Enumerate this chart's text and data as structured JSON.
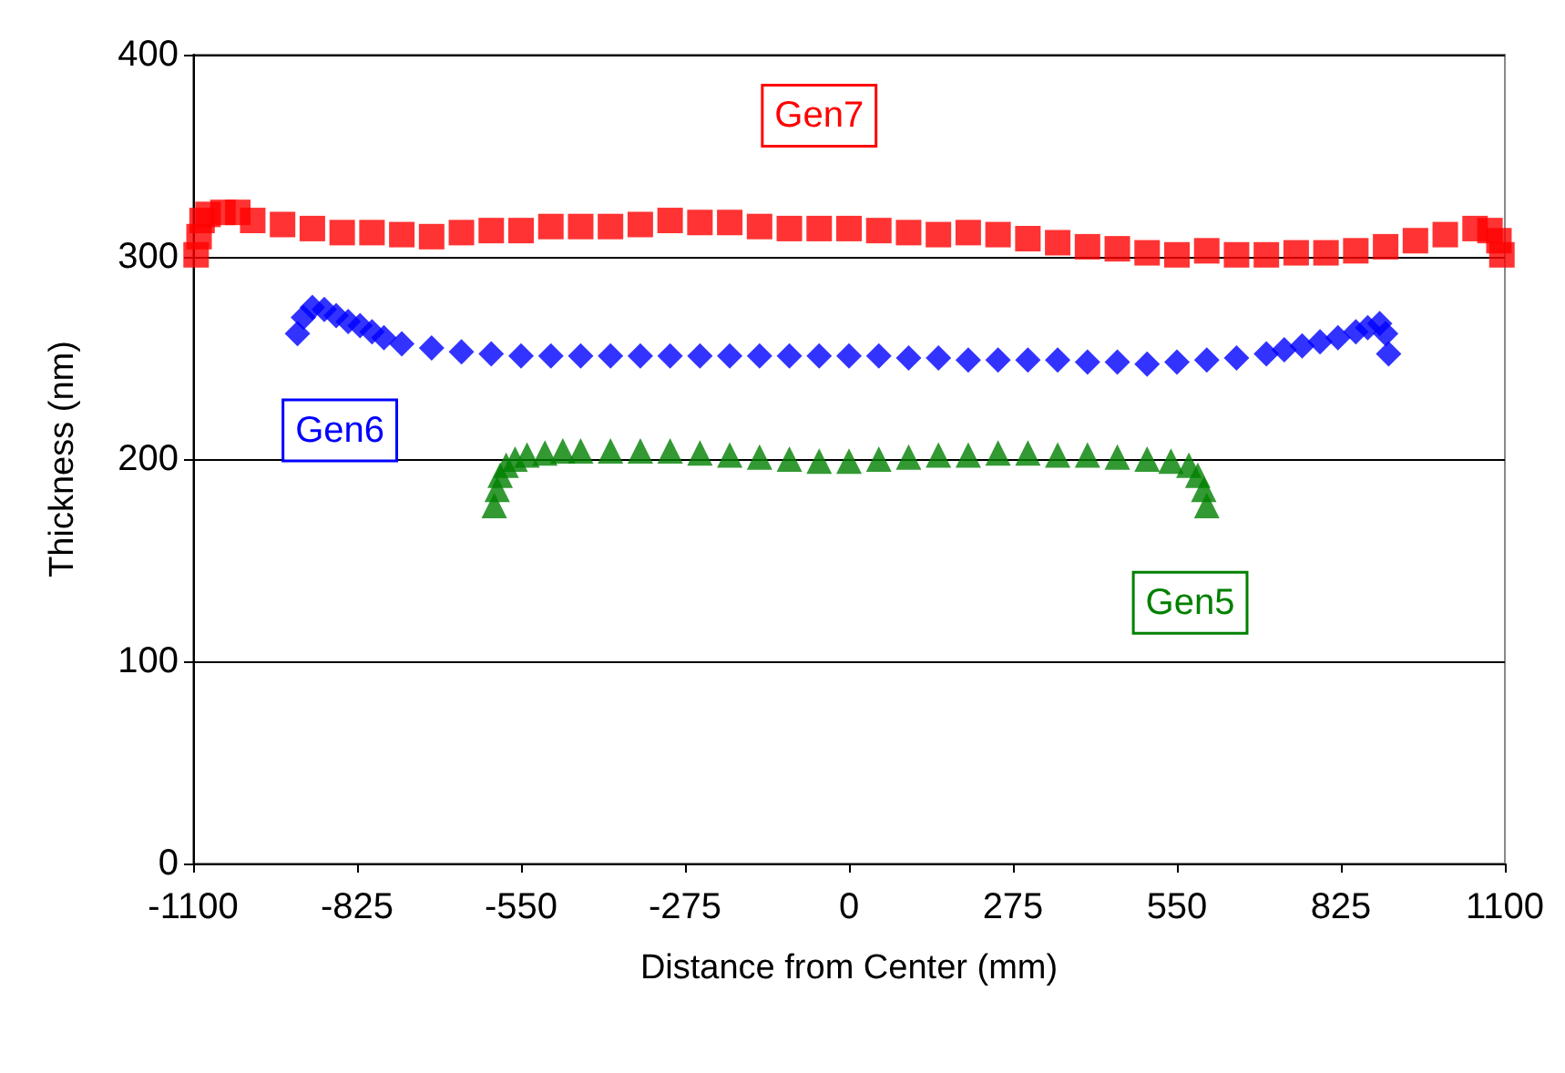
{
  "chart_data": {
    "type": "scatter",
    "xlabel": "Distance from Center (mm)",
    "ylabel": "Thickness (nm)",
    "xlim": [
      -1100,
      1100
    ],
    "xticks": [
      -1100,
      -825,
      -550,
      -275,
      0,
      275,
      550,
      825,
      1100
    ],
    "ylim": [
      0,
      400
    ],
    "yticks": [
      0,
      100,
      200,
      300,
      400
    ],
    "grid": "y",
    "legend": false,
    "series": [
      {
        "name": "Gen7",
        "color": "#ff0000",
        "marker": "square",
        "x": [
          -1095,
          -1090,
          -1085,
          -1075,
          -1050,
          -1025,
          -1000,
          -950,
          -900,
          -850,
          -800,
          -750,
          -700,
          -650,
          -600,
          -550,
          -500,
          -450,
          -400,
          -350,
          -300,
          -250,
          -200,
          -150,
          -100,
          -50,
          0,
          50,
          100,
          150,
          200,
          250,
          300,
          350,
          400,
          450,
          500,
          550,
          600,
          650,
          700,
          750,
          800,
          850,
          900,
          950,
          1000,
          1050,
          1075,
          1090,
          1095
        ],
        "values": [
          301,
          310,
          318,
          321,
          322,
          322,
          318,
          316,
          314,
          312,
          312,
          311,
          310,
          312,
          313,
          313,
          315,
          315,
          315,
          316,
          318,
          317,
          317,
          315,
          314,
          314,
          314,
          313,
          312,
          311,
          312,
          311,
          309,
          307,
          305,
          304,
          302,
          301,
          303,
          301,
          301,
          302,
          302,
          303,
          305,
          308,
          311,
          314,
          313,
          308,
          301
        ]
      },
      {
        "name": "Gen6",
        "color": "#0000ff",
        "marker": "diamond",
        "x": [
          -925,
          -915,
          -900,
          -880,
          -860,
          -840,
          -820,
          -800,
          -780,
          -750,
          -700,
          -650,
          -600,
          -550,
          -500,
          -450,
          -400,
          -350,
          -300,
          -250,
          -200,
          -150,
          -100,
          -50,
          0,
          50,
          100,
          150,
          200,
          250,
          300,
          350,
          400,
          450,
          500,
          550,
          600,
          650,
          700,
          730,
          760,
          790,
          820,
          850,
          870,
          890,
          900,
          905
        ],
        "values": [
          262,
          270,
          275,
          274,
          271,
          268,
          266,
          263,
          260,
          257,
          255,
          253,
          252,
          251,
          251,
          251,
          251,
          251,
          251,
          251,
          251,
          251,
          251,
          251,
          251,
          251,
          250,
          250,
          249,
          249,
          249,
          249,
          248,
          248,
          247,
          248,
          249,
          250,
          252,
          254,
          256,
          258,
          260,
          263,
          265,
          267,
          262,
          252
        ]
      },
      {
        "name": "Gen5",
        "color": "#008000",
        "marker": "triangle",
        "x": [
          -595,
          -590,
          -585,
          -575,
          -560,
          -540,
          -510,
          -480,
          -450,
          -400,
          -350,
          -300,
          -250,
          -200,
          -150,
          -100,
          -50,
          0,
          50,
          100,
          150,
          200,
          250,
          300,
          350,
          400,
          450,
          500,
          540,
          570,
          585,
          595,
          600
        ],
        "values": [
          177,
          185,
          192,
          197,
          200,
          202,
          203,
          204,
          204,
          204,
          204,
          204,
          203,
          202,
          201,
          200,
          199,
          199,
          200,
          201,
          202,
          202,
          203,
          203,
          202,
          202,
          201,
          200,
          199,
          197,
          192,
          185,
          177
        ]
      }
    ]
  }
}
